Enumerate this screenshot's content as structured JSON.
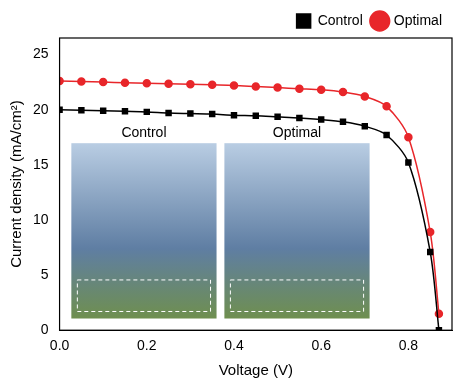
{
  "chart_data": {
    "type": "line",
    "x_label": "Voltage (V)",
    "y_label": "Current density (mA/cm²)",
    "x": [
      0,
      0.05,
      0.1,
      0.15,
      0.2,
      0.25,
      0.3,
      0.35,
      0.4,
      0.45,
      0.5,
      0.55,
      0.6,
      0.65,
      0.7,
      0.75,
      0.8,
      0.85,
      0.87
    ],
    "series": [
      {
        "name": "Control",
        "color": "#000000",
        "marker": "square",
        "values": [
          20.0,
          19.95,
          19.9,
          19.85,
          19.8,
          19.7,
          19.65,
          19.6,
          19.5,
          19.45,
          19.35,
          19.25,
          19.1,
          18.9,
          18.5,
          17.7,
          15.2,
          7.1,
          0
        ]
      },
      {
        "name": "Optimal",
        "color": "#e8262a",
        "marker": "circle",
        "values": [
          22.6,
          22.55,
          22.5,
          22.45,
          22.4,
          22.35,
          22.3,
          22.25,
          22.2,
          22.1,
          22.0,
          21.9,
          21.8,
          21.6,
          21.2,
          20.3,
          17.5,
          8.9,
          1.5
        ]
      }
    ],
    "xlim": [
      0,
      0.9
    ],
    "xticks": [
      {
        "value": 0,
        "label": "0.0"
      },
      {
        "value": 0.2,
        "label": "0.2"
      },
      {
        "value": 0.4,
        "label": "0.4"
      },
      {
        "value": 0.6,
        "label": "0.6"
      },
      {
        "value": 0.8,
        "label": "0.8"
      }
    ],
    "ylim": [
      0,
      26.5
    ],
    "yticks": [
      0,
      5,
      10,
      15,
      20,
      25
    ],
    "grid": false,
    "legend": "top-right",
    "annotations": [
      "Control",
      "Optimal"
    ]
  }
}
